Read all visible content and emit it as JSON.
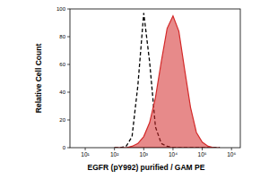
{
  "chart_data": {
    "type": "line",
    "x_label": "EGFR (pY992) purified / GAM PE",
    "y_label": "Relative Cell Count",
    "log": "x",
    "x": [
      100,
      158,
      251,
      398,
      631,
      1000,
      1585,
      2512,
      3981,
      6310,
      10000,
      15849,
      25119,
      39811,
      63096,
      100000,
      158489,
      251189,
      398107
    ],
    "series": [
      {
        "type": "line",
        "color": "#000000",
        "line_style": "dashed",
        "values": [
          0,
          0,
          1,
          8,
          45,
          97,
          62,
          15,
          3,
          1,
          0,
          0,
          0,
          0,
          0,
          0,
          0,
          0,
          0
        ]
      },
      {
        "type": "area",
        "color": "#d42a2a",
        "values": [
          0,
          0,
          0,
          1,
          3,
          8,
          18,
          36,
          62,
          86,
          95,
          84,
          56,
          29,
          11,
          4,
          1,
          0,
          0
        ]
      }
    ],
    "xlim": [
      3,
      2000000
    ],
    "xticks": [
      {
        "value": 10,
        "label": "10¹"
      },
      {
        "value": 100,
        "label": "10²"
      },
      {
        "value": 1000,
        "label": "10³"
      },
      {
        "value": 10000,
        "label": "10⁴"
      },
      {
        "value": 100000,
        "label": "10⁵"
      },
      {
        "value": 1000000,
        "label": "10⁶"
      }
    ],
    "ylim": [
      0,
      100
    ],
    "yticks": [
      0,
      20,
      40,
      60,
      80,
      100
    ]
  }
}
